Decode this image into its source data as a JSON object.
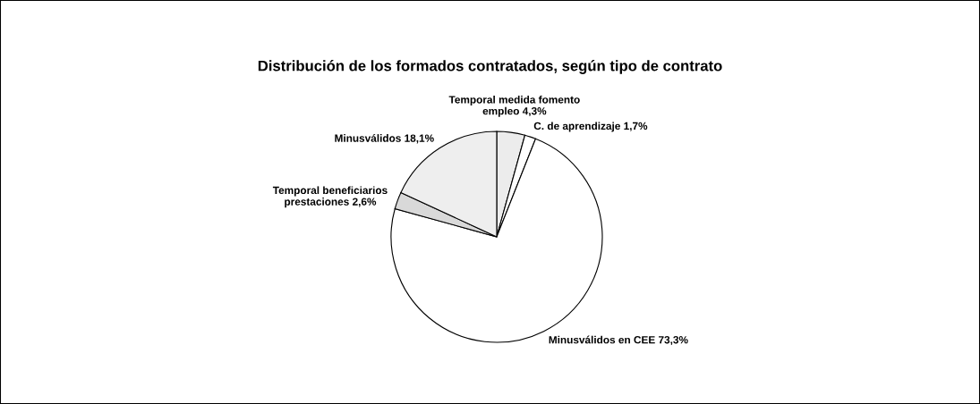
{
  "chart_data": {
    "type": "pie",
    "title": "Distribución de los formados contratados, según tipo de contrato",
    "categories": [
      "Temporal medida fomento\nempleo",
      "C. de aprendizaje",
      "Minusválidos en CEE",
      "Temporal beneficiarios\nprestaciones",
      "Minusválidos"
    ],
    "values": [
      4.3,
      1.7,
      73.3,
      2.6,
      18.1
    ],
    "value_labels": [
      "4,3%",
      "1,7%",
      "73,3%",
      "2,6%",
      "18,1%"
    ],
    "colors": [
      "#ececec",
      "#ffffff",
      "#ffffff",
      "#d9d9d9",
      "#eeeeee"
    ]
  }
}
